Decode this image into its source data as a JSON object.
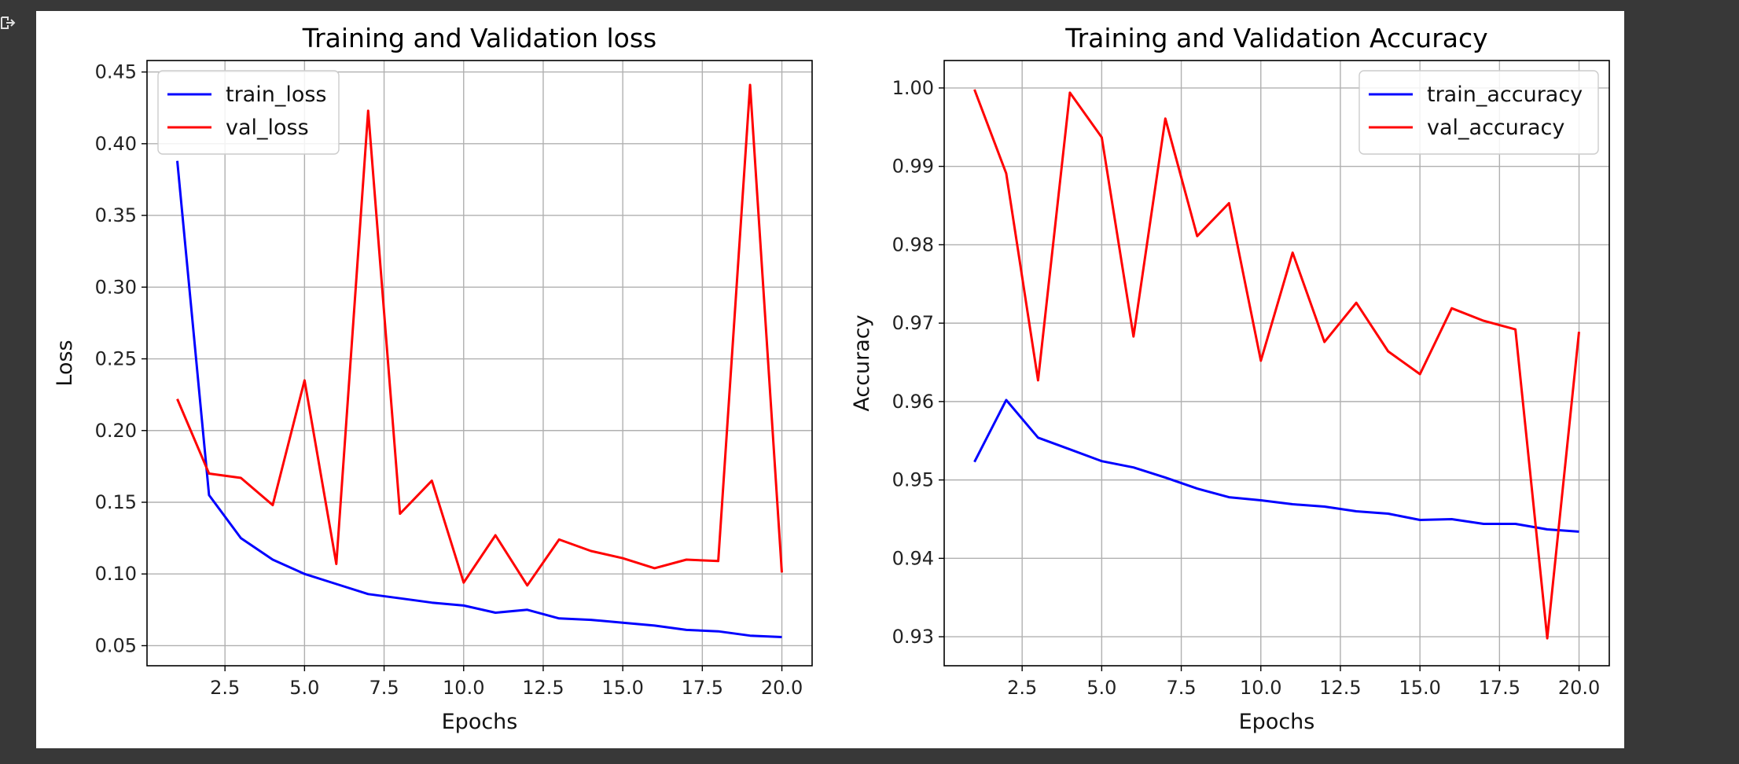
{
  "output_area": {
    "icon": "output-expand-icon"
  },
  "chart_data": [
    {
      "type": "line",
      "title": "Training and Validation loss",
      "xlabel": "Epochs",
      "ylabel": "Loss",
      "xlim": [
        0.05,
        20.95
      ],
      "ylim": [
        0.036,
        0.458
      ],
      "grid": true,
      "legend_position": "top-left",
      "xticks": [
        2.5,
        5.0,
        7.5,
        10.0,
        12.5,
        15.0,
        17.5,
        20.0
      ],
      "xtick_labels": [
        "2.5",
        "5.0",
        "7.5",
        "10.0",
        "12.5",
        "15.0",
        "17.5",
        "20.0"
      ],
      "yticks": [
        0.05,
        0.1,
        0.15,
        0.2,
        0.25,
        0.3,
        0.35,
        0.4,
        0.45
      ],
      "ytick_labels": [
        "0.05",
        "0.10",
        "0.15",
        "0.20",
        "0.25",
        "0.30",
        "0.35",
        "0.40",
        "0.45"
      ],
      "x": [
        1,
        2,
        3,
        4,
        5,
        6,
        7,
        8,
        9,
        10,
        11,
        12,
        13,
        14,
        15,
        16,
        17,
        18,
        19,
        20
      ],
      "series": [
        {
          "name": "train_loss",
          "color": "#0000ff",
          "values": [
            0.388,
            0.155,
            0.125,
            0.11,
            0.1,
            0.093,
            0.086,
            0.083,
            0.08,
            0.078,
            0.073,
            0.075,
            0.069,
            0.068,
            0.066,
            0.064,
            0.061,
            0.06,
            0.057,
            0.056
          ]
        },
        {
          "name": "val_loss",
          "color": "#ff0000",
          "values": [
            0.222,
            0.17,
            0.167,
            0.148,
            0.235,
            0.107,
            0.423,
            0.142,
            0.165,
            0.094,
            0.127,
            0.092,
            0.124,
            0.116,
            0.111,
            0.104,
            0.11,
            0.109,
            0.441,
            0.101
          ]
        }
      ]
    },
    {
      "type": "line",
      "title": "Training and Validation Accuracy",
      "xlabel": "Epochs",
      "ylabel": "Accuracy",
      "xlim": [
        0.05,
        20.95
      ],
      "ylim": [
        0.9263,
        1.0035
      ],
      "grid": true,
      "legend_position": "top-right",
      "xticks": [
        2.5,
        5.0,
        7.5,
        10.0,
        12.5,
        15.0,
        17.5,
        20.0
      ],
      "xtick_labels": [
        "2.5",
        "5.0",
        "7.5",
        "10.0",
        "12.5",
        "15.0",
        "17.5",
        "20.0"
      ],
      "yticks": [
        0.93,
        0.94,
        0.95,
        0.96,
        0.97,
        0.98,
        0.99,
        1.0
      ],
      "ytick_labels": [
        "0.93",
        "0.94",
        "0.95",
        "0.96",
        "0.97",
        "0.98",
        "0.99",
        "1.00"
      ],
      "x": [
        1,
        2,
        3,
        4,
        5,
        6,
        7,
        8,
        9,
        10,
        11,
        12,
        13,
        14,
        15,
        16,
        17,
        18,
        19,
        20
      ],
      "series": [
        {
          "name": "train_accuracy",
          "color": "#0000ff",
          "values": [
            0.9523,
            0.9602,
            0.9554,
            0.9539,
            0.9524,
            0.9516,
            0.9503,
            0.9489,
            0.9478,
            0.9474,
            0.9469,
            0.9466,
            0.946,
            0.9457,
            0.9449,
            0.945,
            0.9444,
            0.9444,
            0.9437,
            0.9434
          ]
        },
        {
          "name": "val_accuracy",
          "color": "#ff0000",
          "values": [
            0.9998,
            0.9891,
            0.9627,
            0.9994,
            0.9937,
            0.9683,
            0.9961,
            0.9811,
            0.9853,
            0.9652,
            0.979,
            0.9676,
            0.9726,
            0.9664,
            0.9635,
            0.9719,
            0.9703,
            0.9692,
            0.9298,
            0.9689
          ]
        }
      ]
    }
  ]
}
